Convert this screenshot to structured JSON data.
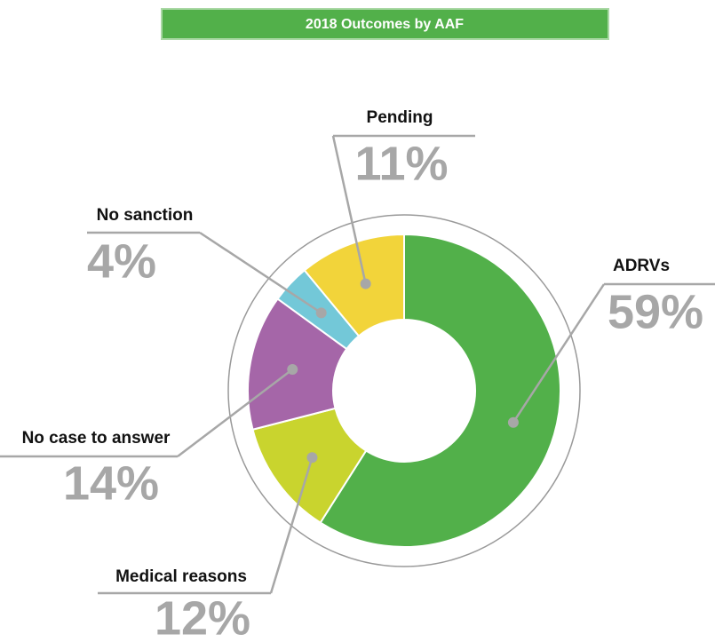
{
  "chart_data": {
    "type": "donut",
    "title": "2018 Outcomes by AAF",
    "categories": [
      "ADRVs",
      "Medical reasons",
      "No case to answer",
      "No sanction",
      "Pending"
    ],
    "values": [
      59,
      12,
      14,
      4,
      11
    ],
    "value_labels": [
      "59%",
      "12%",
      "14%",
      "4%",
      "11%"
    ],
    "colors": [
      "#52b04a",
      "#c9d42e",
      "#a566a8",
      "#73c8d8",
      "#f2d43a"
    ]
  }
}
